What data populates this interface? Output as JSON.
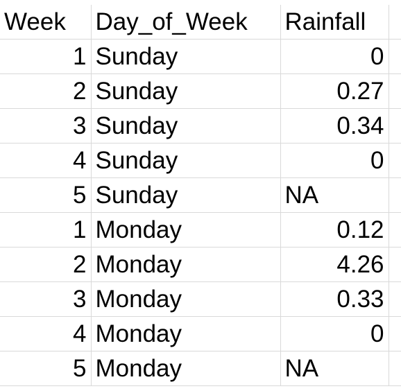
{
  "headers": {
    "week": "Week",
    "day": "Day_of_Week",
    "rainfall": "Rainfall"
  },
  "rows": [
    {
      "week": "1",
      "day": "Sunday",
      "rainfall": "0",
      "rainfall_align": "num"
    },
    {
      "week": "2",
      "day": "Sunday",
      "rainfall": "0.27",
      "rainfall_align": "num"
    },
    {
      "week": "3",
      "day": "Sunday",
      "rainfall": "0.34",
      "rainfall_align": "num"
    },
    {
      "week": "4",
      "day": "Sunday",
      "rainfall": "0",
      "rainfall_align": "num"
    },
    {
      "week": "5",
      "day": "Sunday",
      "rainfall": "NA",
      "rainfall_align": "txt"
    },
    {
      "week": "1",
      "day": "Monday",
      "rainfall": "0.12",
      "rainfall_align": "num"
    },
    {
      "week": "2",
      "day": "Monday",
      "rainfall": "4.26",
      "rainfall_align": "num"
    },
    {
      "week": "3",
      "day": "Monday",
      "rainfall": "0.33",
      "rainfall_align": "num"
    },
    {
      "week": "4",
      "day": "Monday",
      "rainfall": "0",
      "rainfall_align": "num"
    },
    {
      "week": "5",
      "day": "Monday",
      "rainfall": "NA",
      "rainfall_align": "txt"
    }
  ],
  "colors": {
    "gridline": "#d9d9d9",
    "text": "#000000",
    "background": "#ffffff"
  }
}
